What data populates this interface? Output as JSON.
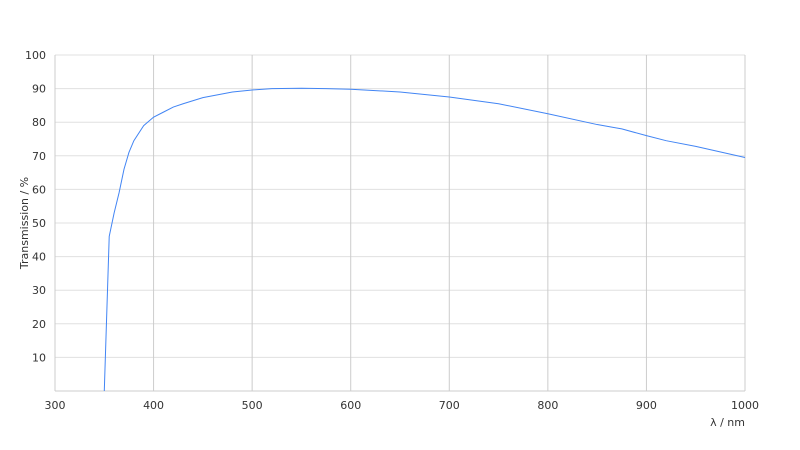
{
  "chart_data": {
    "type": "line",
    "title": "",
    "xlabel": "λ / nm",
    "ylabel": "Transmission / %",
    "xlim": [
      300,
      1000
    ],
    "ylim": [
      0,
      100
    ],
    "xticks": [
      300,
      400,
      500,
      600,
      700,
      800,
      900,
      1000
    ],
    "yticks": [
      10,
      20,
      30,
      40,
      50,
      60,
      70,
      80,
      90,
      100
    ],
    "grid": true,
    "series": [
      {
        "color": "#4285f4",
        "x": [
          350,
          355,
          360,
          365,
          370,
          375,
          380,
          390,
          400,
          410,
          420,
          430,
          450,
          480,
          500,
          520,
          550,
          575,
          600,
          650,
          700,
          750,
          800,
          850,
          875,
          900,
          920,
          950,
          1000
        ],
        "y": [
          0,
          46,
          53,
          59,
          66,
          71,
          74.5,
          79,
          81.5,
          83,
          84.5,
          85.5,
          87.3,
          89,
          89.6,
          90,
          90.1,
          90,
          89.8,
          89,
          87.5,
          85.5,
          82.5,
          79.3,
          78,
          76,
          74.5,
          72.8,
          69.5
        ]
      }
    ]
  }
}
